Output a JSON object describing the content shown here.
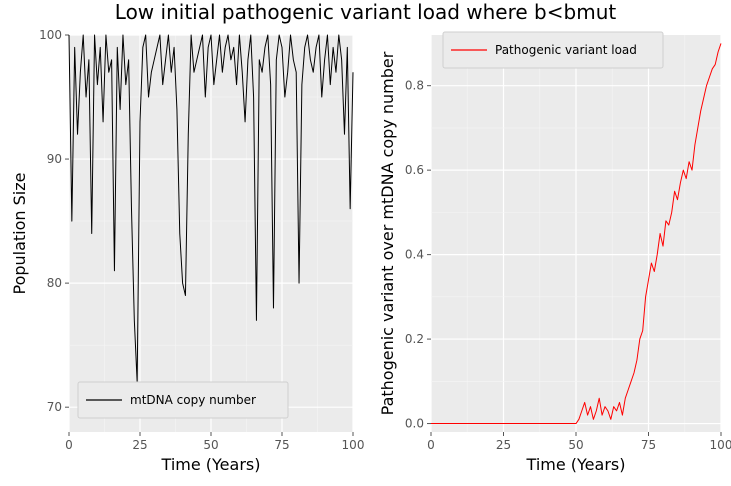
{
  "title": "Low initial pathogenic variant load where b<bmut",
  "chart_data": [
    {
      "type": "line",
      "xlabel": "Time (Years)",
      "ylabel": "Population Size",
      "xlim": [
        0,
        100
      ],
      "ylim": [
        68,
        100
      ],
      "xticks": [
        0,
        25,
        50,
        75,
        100
      ],
      "yticks": [
        70,
        80,
        90,
        100
      ],
      "grid": true,
      "legend_position": "lower-left",
      "series": [
        {
          "name": "mtDNA copy number",
          "color": "#000000",
          "x": [
            0,
            1,
            2,
            3,
            4,
            5,
            6,
            7,
            8,
            9,
            10,
            11,
            12,
            13,
            14,
            15,
            16,
            17,
            18,
            19,
            20,
            21,
            22,
            23,
            24,
            25,
            26,
            27,
            28,
            29,
            30,
            31,
            32,
            33,
            34,
            35,
            36,
            37,
            38,
            39,
            40,
            41,
            42,
            43,
            44,
            45,
            46,
            47,
            48,
            49,
            50,
            51,
            52,
            53,
            54,
            55,
            56,
            57,
            58,
            59,
            60,
            61,
            62,
            63,
            64,
            65,
            66,
            67,
            68,
            69,
            70,
            71,
            72,
            73,
            74,
            75,
            76,
            77,
            78,
            79,
            80,
            81,
            82,
            83,
            84,
            85,
            86,
            87,
            88,
            89,
            90,
            91,
            92,
            93,
            94,
            95,
            96,
            97,
            98,
            99,
            100
          ],
          "values": [
            100,
            85,
            99,
            92,
            97,
            100,
            95,
            98,
            84,
            100,
            96,
            99,
            93,
            100,
            97,
            98,
            81,
            99,
            94,
            100,
            96,
            98,
            86,
            77,
            72,
            93,
            99,
            100,
            95,
            97,
            98,
            99,
            100,
            96,
            98,
            100,
            97,
            99,
            94,
            84,
            80,
            79,
            92,
            100,
            97,
            98,
            99,
            100,
            95,
            99,
            100,
            96,
            98,
            100,
            97,
            99,
            100,
            98,
            99,
            96,
            100,
            97,
            93,
            98,
            100,
            95,
            77,
            98,
            97,
            99,
            100,
            96,
            78,
            98,
            100,
            99,
            95,
            97,
            100,
            98,
            97,
            80,
            96,
            99,
            100,
            98,
            97,
            99,
            100,
            95,
            98,
            100,
            96,
            99,
            97,
            100,
            98,
            92,
            99,
            86,
            97
          ]
        }
      ]
    },
    {
      "type": "line",
      "xlabel": "Time (Years)",
      "ylabel": "Pathogenic variant over mtDNA copy number",
      "xlim": [
        0,
        100
      ],
      "ylim": [
        -0.02,
        0.92
      ],
      "xticks": [
        0,
        25,
        50,
        75,
        100
      ],
      "yticks": [
        0.0,
        0.2,
        0.4,
        0.6,
        0.8
      ],
      "ytick_labels": [
        "0.0",
        "0.2",
        "0.4",
        "0.6",
        "0.8"
      ],
      "grid": true,
      "legend_position": "top-left",
      "series": [
        {
          "name": "Pathogenic variant load",
          "color": "#ff0000",
          "x": [
            0,
            5,
            10,
            15,
            20,
            25,
            30,
            35,
            40,
            45,
            50,
            51,
            52,
            53,
            54,
            55,
            56,
            57,
            58,
            59,
            60,
            61,
            62,
            63,
            64,
            65,
            66,
            67,
            68,
            69,
            70,
            71,
            72,
            73,
            74,
            75,
            76,
            77,
            78,
            79,
            80,
            81,
            82,
            83,
            84,
            85,
            86,
            87,
            88,
            89,
            90,
            91,
            92,
            93,
            94,
            95,
            96,
            97,
            98,
            99,
            100
          ],
          "values": [
            0,
            0,
            0,
            0,
            0,
            0,
            0,
            0,
            0,
            0,
            0,
            0.01,
            0.03,
            0.05,
            0.02,
            0.04,
            0.01,
            0.03,
            0.06,
            0.02,
            0.04,
            0.03,
            0.01,
            0.04,
            0.03,
            0.05,
            0.02,
            0.06,
            0.08,
            0.1,
            0.12,
            0.15,
            0.2,
            0.22,
            0.3,
            0.34,
            0.38,
            0.36,
            0.4,
            0.45,
            0.42,
            0.48,
            0.47,
            0.5,
            0.55,
            0.53,
            0.57,
            0.6,
            0.58,
            0.62,
            0.6,
            0.66,
            0.7,
            0.74,
            0.77,
            0.8,
            0.82,
            0.84,
            0.85,
            0.88,
            0.9
          ]
        }
      ]
    }
  ]
}
